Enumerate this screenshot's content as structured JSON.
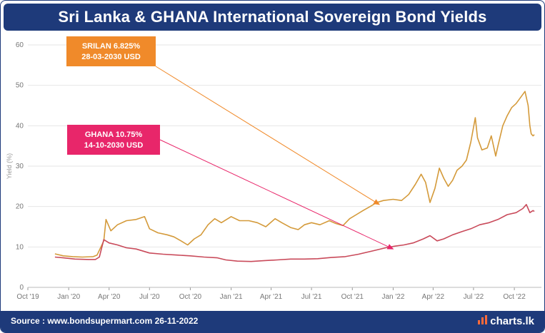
{
  "title": "Sri Lanka & GHANA International Sovereign Bond Yields",
  "footer": {
    "source": "Source : www.bondsupermart.com  26-11-2022",
    "brand": "charts.lk"
  },
  "colors": {
    "header": "#1e3a7a",
    "srilanka": "#d49a3a",
    "ghana": "#c94a5a",
    "srilanka_box": "#f08a2a",
    "ghana_box": "#e8266a",
    "grid": "#e6e6e6"
  },
  "chart_data": {
    "type": "line",
    "ylabel": "Yield (%)",
    "ylim": [
      0,
      60
    ],
    "yticks": [
      0,
      10,
      20,
      30,
      40,
      50,
      60
    ],
    "xlim": [
      "2019-10-01",
      "2022-12-01"
    ],
    "xticks": [
      "2019-10-01",
      "2020-01-01",
      "2020-04-01",
      "2020-07-01",
      "2020-10-01",
      "2021-01-01",
      "2021-04-01",
      "2021-07-01",
      "2021-10-01",
      "2022-01-01",
      "2022-04-01",
      "2022-07-01",
      "2022-10-01"
    ],
    "xticklabels": [
      "Oct '19",
      "Jan '20",
      "Apr '20",
      "Jul '20",
      "Oct '20",
      "Jan '21",
      "Apr '21",
      "Jul '21",
      "Oct '21",
      "Jan '22",
      "Apr '22",
      "Jul '22",
      "Oct '22"
    ],
    "grid": true,
    "series": [
      {
        "name": "SRILAN 6.825% 28-03-2030 USD",
        "points": [
          [
            "2019-12-01",
            8.3
          ],
          [
            "2019-12-20",
            7.8
          ],
          [
            "2020-01-10",
            7.6
          ],
          [
            "2020-02-01",
            7.5
          ],
          [
            "2020-02-25",
            7.6
          ],
          [
            "2020-03-05",
            8.0
          ],
          [
            "2020-03-20",
            11.5
          ],
          [
            "2020-03-25",
            16.8
          ],
          [
            "2020-04-05",
            14.0
          ],
          [
            "2020-04-20",
            15.5
          ],
          [
            "2020-05-10",
            16.5
          ],
          [
            "2020-06-01",
            16.8
          ],
          [
            "2020-06-20",
            17.5
          ],
          [
            "2020-07-01",
            14.5
          ],
          [
            "2020-07-20",
            13.5
          ],
          [
            "2020-08-10",
            13.0
          ],
          [
            "2020-08-25",
            12.5
          ],
          [
            "2020-09-10",
            11.5
          ],
          [
            "2020-09-25",
            10.5
          ],
          [
            "2020-10-10",
            12.0
          ],
          [
            "2020-10-25",
            13.0
          ],
          [
            "2020-11-10",
            15.5
          ],
          [
            "2020-11-25",
            17.0
          ],
          [
            "2020-12-10",
            16.0
          ],
          [
            "2021-01-01",
            17.5
          ],
          [
            "2021-01-20",
            16.5
          ],
          [
            "2021-02-10",
            16.5
          ],
          [
            "2021-03-01",
            16.0
          ],
          [
            "2021-03-20",
            15.0
          ],
          [
            "2021-04-10",
            17.0
          ],
          [
            "2021-04-25",
            16.0
          ],
          [
            "2021-05-15",
            14.8
          ],
          [
            "2021-06-01",
            14.3
          ],
          [
            "2021-06-15",
            15.5
          ],
          [
            "2021-07-01",
            16.0
          ],
          [
            "2021-07-20",
            15.5
          ],
          [
            "2021-08-10",
            16.5
          ],
          [
            "2021-08-25",
            15.8
          ],
          [
            "2021-09-10",
            15.3
          ],
          [
            "2021-09-25",
            17.0
          ],
          [
            "2021-10-10",
            18.0
          ],
          [
            "2021-10-25",
            19.0
          ],
          [
            "2021-11-10",
            20.0
          ],
          [
            "2021-11-25",
            21.0
          ],
          [
            "2021-12-10",
            21.5
          ],
          [
            "2022-01-01",
            21.8
          ],
          [
            "2022-01-20",
            21.5
          ],
          [
            "2022-02-05",
            23.0
          ],
          [
            "2022-02-20",
            25.5
          ],
          [
            "2022-03-05",
            28.0
          ],
          [
            "2022-03-15",
            26.0
          ],
          [
            "2022-03-25",
            21.0
          ],
          [
            "2022-04-05",
            24.5
          ],
          [
            "2022-04-15",
            29.5
          ],
          [
            "2022-04-25",
            27.0
          ],
          [
            "2022-05-05",
            25.0
          ],
          [
            "2022-05-15",
            26.5
          ],
          [
            "2022-05-25",
            29.0
          ],
          [
            "2022-06-05",
            30.0
          ],
          [
            "2022-06-15",
            31.5
          ],
          [
            "2022-06-25",
            36.0
          ],
          [
            "2022-07-05",
            42.0
          ],
          [
            "2022-07-10",
            37.0
          ],
          [
            "2022-07-20",
            34.0
          ],
          [
            "2022-08-01",
            34.5
          ],
          [
            "2022-08-10",
            37.5
          ],
          [
            "2022-08-20",
            32.5
          ],
          [
            "2022-08-25",
            35.0
          ],
          [
            "2022-09-05",
            40.0
          ],
          [
            "2022-09-15",
            42.5
          ],
          [
            "2022-09-25",
            44.5
          ],
          [
            "2022-10-05",
            45.5
          ],
          [
            "2022-10-15",
            47.0
          ],
          [
            "2022-10-25",
            48.5
          ],
          [
            "2022-11-01",
            45.0
          ],
          [
            "2022-11-05",
            40.0
          ],
          [
            "2022-11-08",
            38.0
          ],
          [
            "2022-11-12",
            37.5
          ],
          [
            "2022-11-15",
            37.8
          ]
        ]
      },
      {
        "name": "GHANA 10.75% 14-10-2030 USD",
        "points": [
          [
            "2019-12-01",
            7.5
          ],
          [
            "2019-12-20",
            7.3
          ],
          [
            "2020-01-15",
            7.0
          ],
          [
            "2020-02-15",
            6.9
          ],
          [
            "2020-03-01",
            6.9
          ],
          [
            "2020-03-10",
            7.5
          ],
          [
            "2020-03-20",
            11.8
          ],
          [
            "2020-04-01",
            11.0
          ],
          [
            "2020-04-20",
            10.5
          ],
          [
            "2020-05-10",
            9.8
          ],
          [
            "2020-06-01",
            9.5
          ],
          [
            "2020-07-01",
            8.5
          ],
          [
            "2020-08-01",
            8.2
          ],
          [
            "2020-09-01",
            8.0
          ],
          [
            "2020-10-01",
            7.8
          ],
          [
            "2020-11-01",
            7.5
          ],
          [
            "2020-12-01",
            7.3
          ],
          [
            "2020-12-20",
            6.8
          ],
          [
            "2021-01-15",
            6.5
          ],
          [
            "2021-02-15",
            6.4
          ],
          [
            "2021-03-15",
            6.6
          ],
          [
            "2021-04-15",
            6.8
          ],
          [
            "2021-05-15",
            7.0
          ],
          [
            "2021-06-15",
            7.0
          ],
          [
            "2021-07-15",
            7.1
          ],
          [
            "2021-08-15",
            7.4
          ],
          [
            "2021-09-15",
            7.6
          ],
          [
            "2021-10-15",
            8.2
          ],
          [
            "2021-11-15",
            9.0
          ],
          [
            "2021-12-15",
            9.8
          ],
          [
            "2022-01-05",
            10.2
          ],
          [
            "2022-01-25",
            10.5
          ],
          [
            "2022-02-15",
            11.0
          ],
          [
            "2022-03-10",
            12.0
          ],
          [
            "2022-03-25",
            12.8
          ],
          [
            "2022-04-10",
            11.5
          ],
          [
            "2022-04-25",
            12.0
          ],
          [
            "2022-05-15",
            13.0
          ],
          [
            "2022-06-05",
            13.8
          ],
          [
            "2022-06-25",
            14.5
          ],
          [
            "2022-07-15",
            15.5
          ],
          [
            "2022-08-05",
            16.0
          ],
          [
            "2022-08-25",
            16.8
          ],
          [
            "2022-09-15",
            18.0
          ],
          [
            "2022-10-05",
            18.5
          ],
          [
            "2022-10-20",
            19.5
          ],
          [
            "2022-10-28",
            20.5
          ],
          [
            "2022-11-05",
            18.5
          ],
          [
            "2022-11-12",
            19.0
          ],
          [
            "2022-11-15",
            18.8
          ]
        ]
      }
    ],
    "annotations": [
      {
        "series": 0,
        "lines": [
          "SRILAN 6.825%",
          "28-03-2030 USD"
        ],
        "target": [
          "2021-12-01",
          20.5
        ]
      },
      {
        "series": 1,
        "lines": [
          "GHANA 10.75%",
          "14-10-2030 USD"
        ],
        "target": [
          "2022-01-01",
          9.5
        ]
      }
    ]
  }
}
